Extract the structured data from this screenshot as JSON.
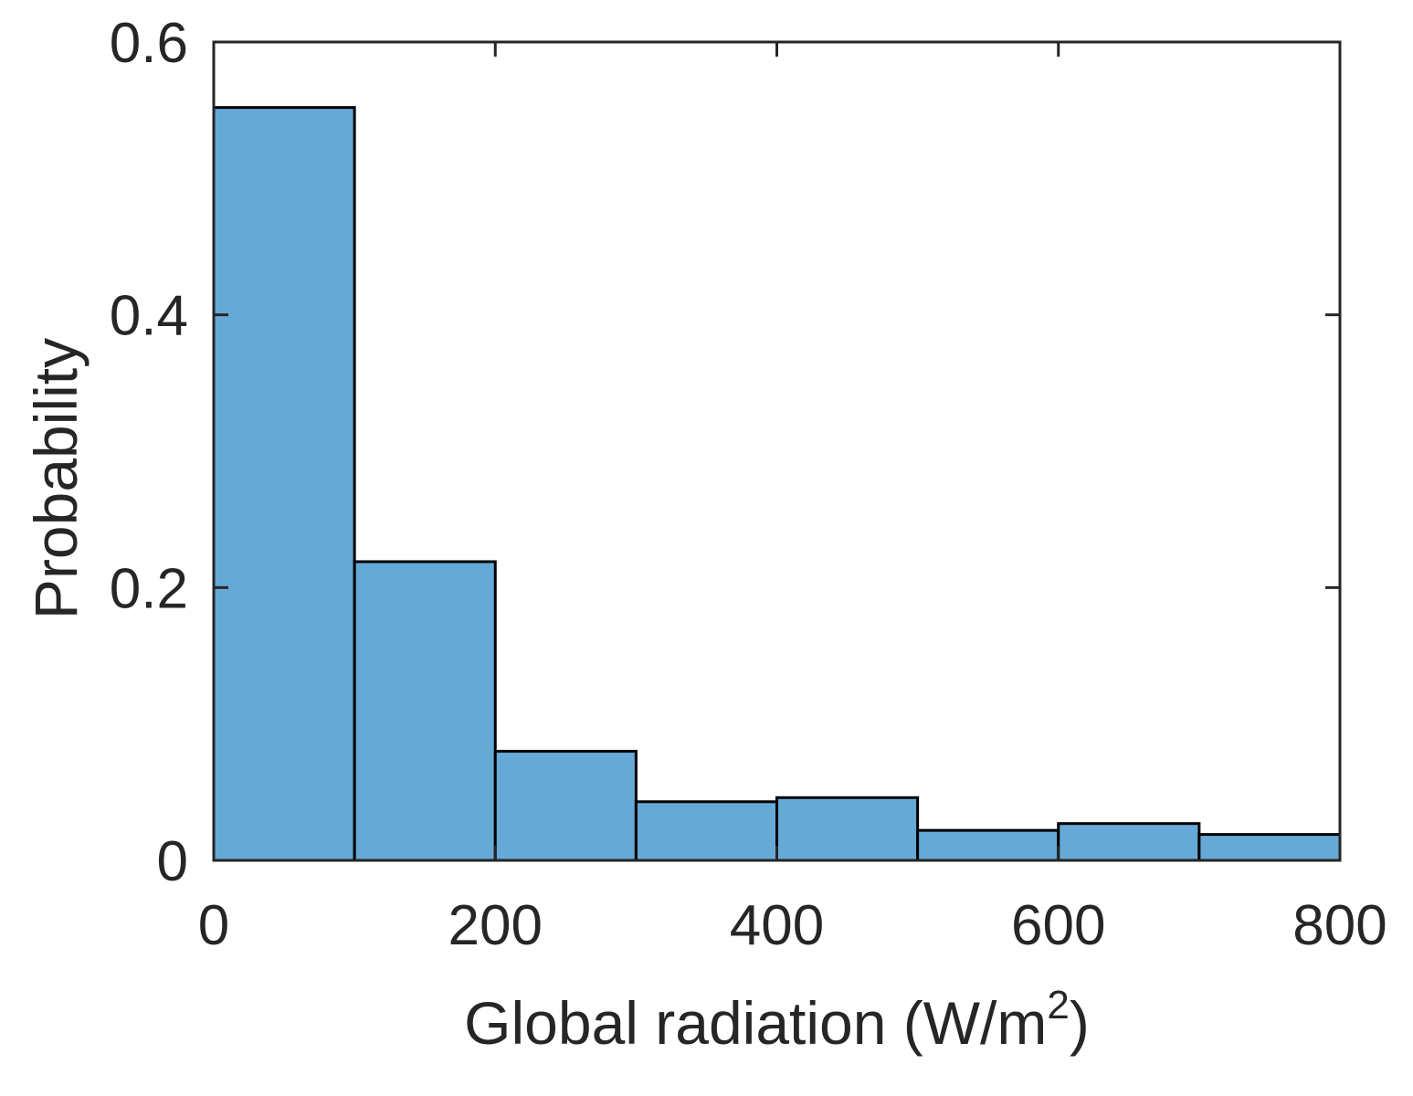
{
  "chart_data": {
    "type": "bar",
    "subtype": "histogram",
    "bin_edges": [
      0,
      100,
      200,
      300,
      400,
      500,
      600,
      700,
      800
    ],
    "values": [
      0.552,
      0.219,
      0.08,
      0.043,
      0.046,
      0.022,
      0.027,
      0.019
    ],
    "xlabel": "Global radiation (W/m",
    "xlabel_superscript": "2",
    "xlabel_suffix": ")",
    "ylabel": "Probability",
    "xlim": [
      0,
      800
    ],
    "ylim": [
      0,
      0.6
    ],
    "xticks": [
      0,
      200,
      400,
      600,
      800
    ],
    "xtick_labels": [
      "0",
      "200",
      "400",
      "600",
      "800"
    ],
    "yticks": [
      0,
      0.2,
      0.4,
      0.6
    ],
    "ytick_labels": [
      "0",
      "0.2",
      "0.4",
      "0.6"
    ],
    "grid": false,
    "legend": "none",
    "bar_color": "#66A9D6",
    "edge_color": "#000000",
    "axis_color": "#262626"
  }
}
